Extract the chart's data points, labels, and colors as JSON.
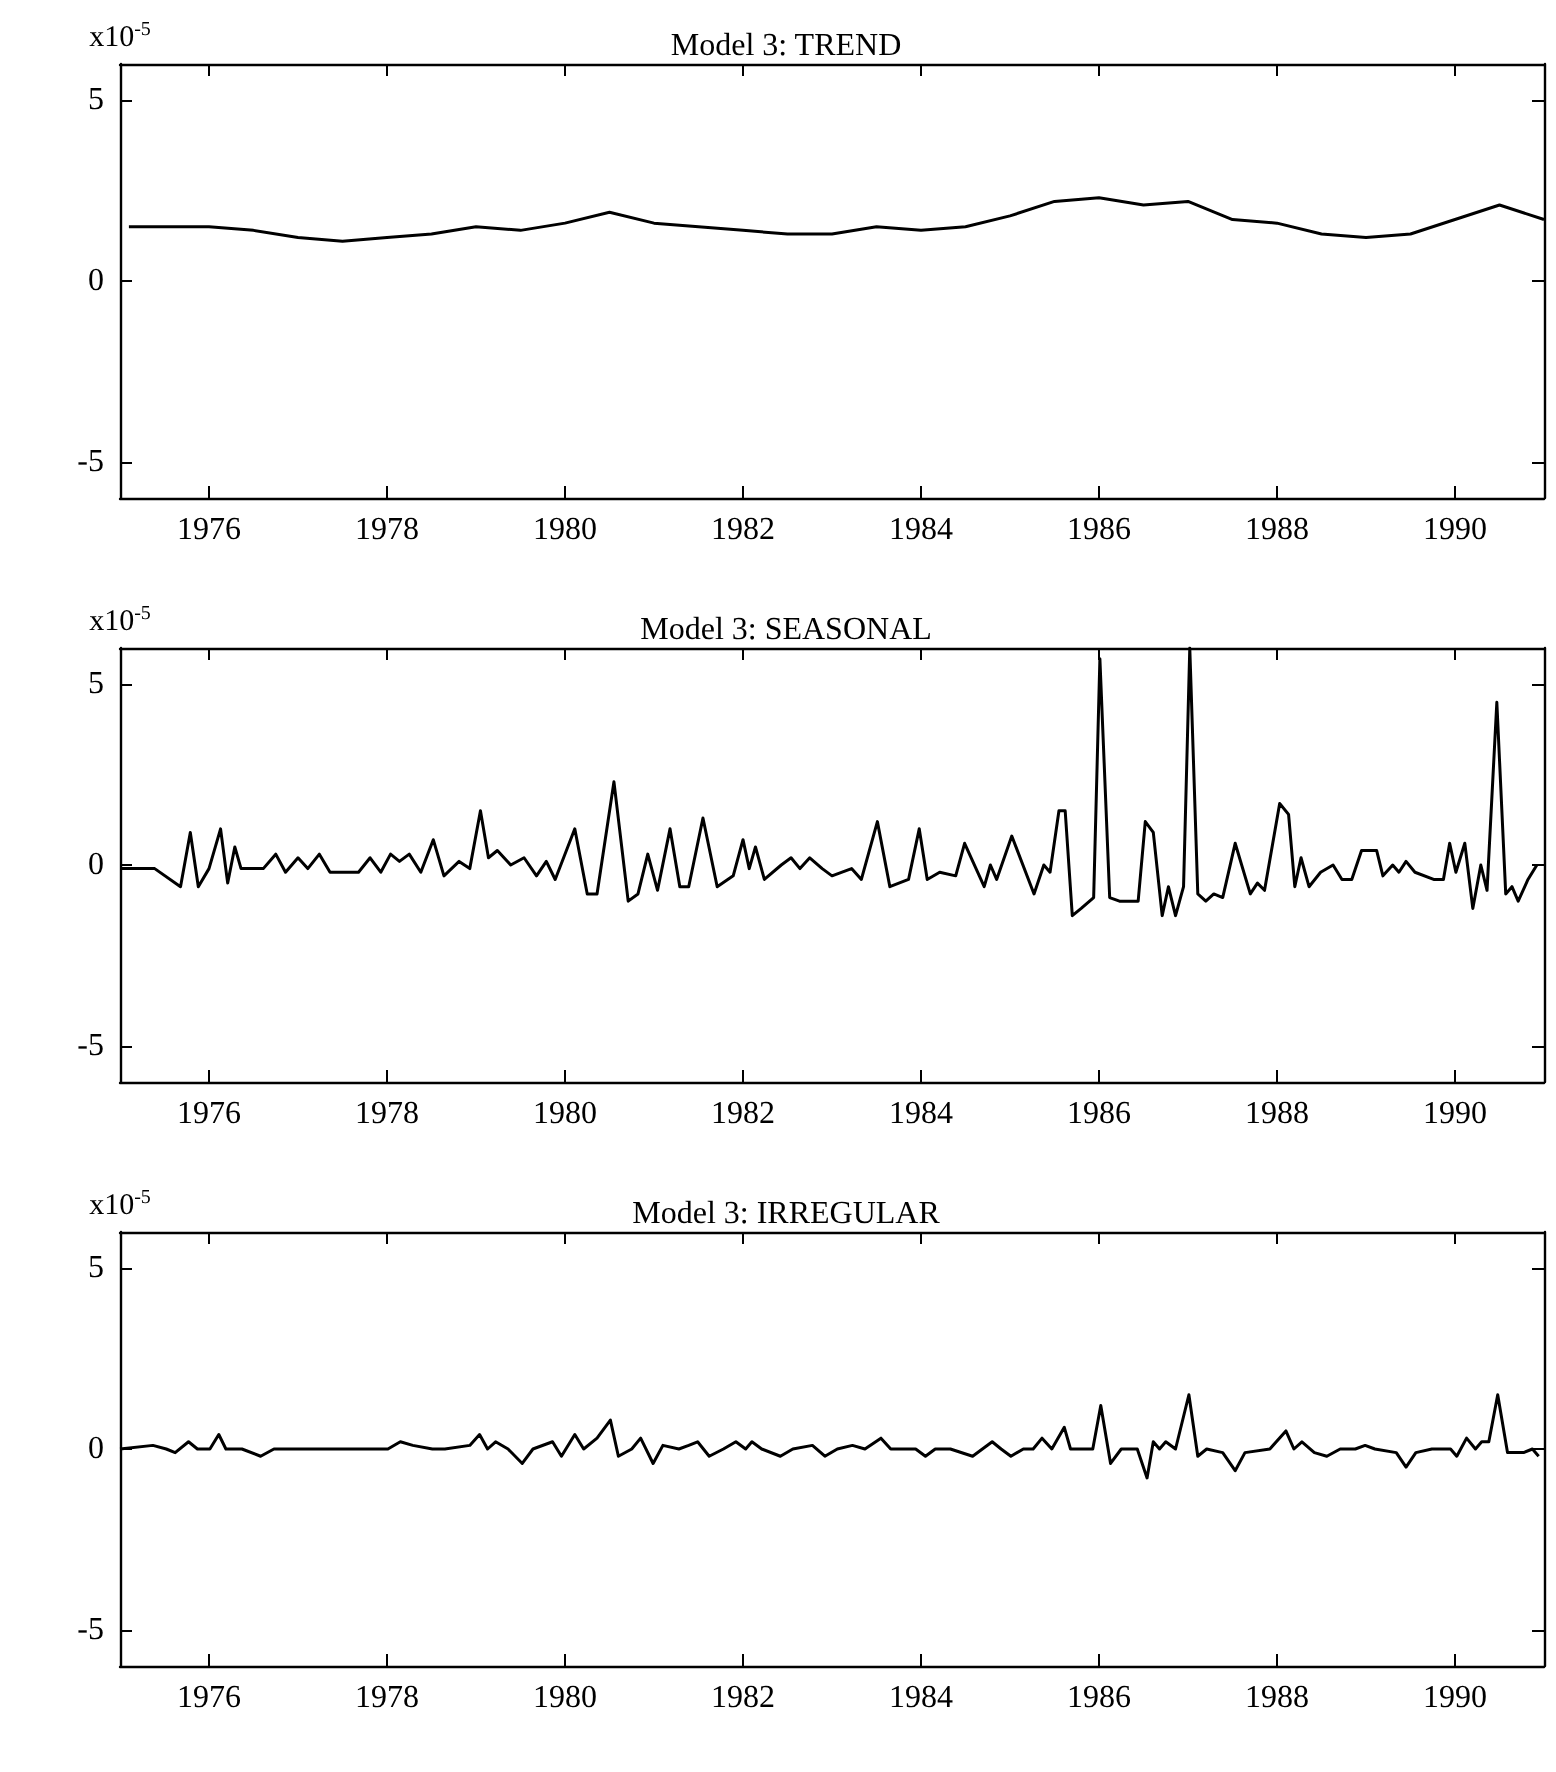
{
  "chart_data": [
    {
      "type": "line",
      "title": "Model 3: TREND",
      "ylabel": "x10$^{-5}$",
      "color": "#000000",
      "xlim": [
        1975,
        1991
      ],
      "xticks": [
        1976,
        1978,
        1980,
        1982,
        1984,
        1986,
        1988,
        1990
      ],
      "ylim": [
        -6,
        6
      ],
      "yticks": [
        -5,
        0,
        5
      ],
      "grid": false,
      "x": [
        1975.1,
        1976,
        1976.5,
        1977,
        1977.5,
        1978,
        1978.5,
        1979,
        1979.5,
        1980,
        1980.5,
        1981,
        1981.5,
        1982,
        1982.5,
        1983,
        1983.5,
        1984,
        1984.5,
        1985,
        1985.5,
        1986,
        1986.5,
        1987,
        1987.5,
        1988,
        1988.5,
        1989,
        1989.5,
        1990,
        1990.5,
        1991
      ],
      "values": [
        1.5,
        1.5,
        1.4,
        1.2,
        1.1,
        1.2,
        1.3,
        1.5,
        1.4,
        1.6,
        1.9,
        1.6,
        1.5,
        1.4,
        1.3,
        1.3,
        1.5,
        1.4,
        1.5,
        1.8,
        2.2,
        2.3,
        2.1,
        2.2,
        1.7,
        1.6,
        1.3,
        1.2,
        1.3,
        1.7,
        2.1,
        1.7
      ]
    },
    {
      "type": "line",
      "title": "Model 3: SEASONAL",
      "ylabel": "x10$^{-5}$",
      "color": "#000000",
      "xlim": [
        1975,
        1991
      ],
      "xticks": [
        1976,
        1978,
        1980,
        1982,
        1984,
        1986,
        1988,
        1990
      ],
      "ylim": [
        -6,
        6
      ],
      "yticks": [
        -5,
        0,
        5
      ],
      "grid": false,
      "x": [
        1975.0,
        1975.39,
        1975.68,
        1975.79,
        1975.88,
        1976.0,
        1976.13,
        1976.21,
        1976.29,
        1976.36,
        1976.61,
        1976.75,
        1976.86,
        1977.0,
        1977.11,
        1977.24,
        1977.36,
        1977.68,
        1977.81,
        1977.93,
        1978.04,
        1978.14,
        1978.25,
        1978.38,
        1978.52,
        1978.64,
        1978.81,
        1978.93,
        1979.05,
        1979.14,
        1979.24,
        1979.39,
        1979.54,
        1979.68,
        1979.79,
        1979.89,
        1980.11,
        1980.25,
        1980.36,
        1980.55,
        1980.71,
        1980.82,
        1980.93,
        1981.04,
        1981.18,
        1981.29,
        1981.39,
        1981.55,
        1981.71,
        1981.89,
        1982.0,
        1982.07,
        1982.14,
        1982.24,
        1982.43,
        1982.54,
        1982.64,
        1982.75,
        1982.89,
        1983.0,
        1983.22,
        1983.33,
        1983.51,
        1983.65,
        1983.86,
        1983.98,
        1984.07,
        1984.21,
        1984.39,
        1984.49,
        1984.71,
        1984.78,
        1984.85,
        1985.02,
        1985.27,
        1985.38,
        1985.45,
        1985.55,
        1985.62,
        1985.7,
        1985.8,
        1985.94,
        1986.01,
        1986.12,
        1986.23,
        1986.44,
        1986.52,
        1986.61,
        1986.71,
        1986.78,
        1986.86,
        1986.95,
        1987.02,
        1987.11,
        1987.2,
        1987.29,
        1987.39,
        1987.53,
        1987.7,
        1987.78,
        1987.86,
        1988.03,
        1988.13,
        1988.2,
        1988.27,
        1988.36,
        1988.49,
        1988.63,
        1988.73,
        1988.84,
        1988.95,
        1989.12,
        1989.19,
        1989.3,
        1989.37,
        1989.45,
        1989.55,
        1989.76,
        1989.87,
        1989.94,
        1990.01,
        1990.11,
        1990.2,
        1990.29,
        1990.36,
        1990.47,
        1990.57,
        1990.64,
        1990.71,
        1990.82,
        1990.92
      ],
      "values": [
        -0.1,
        -0.1,
        -0.6,
        0.9,
        -0.6,
        -0.1,
        1.0,
        -0.5,
        0.5,
        -0.1,
        -0.1,
        0.3,
        -0.2,
        0.2,
        -0.1,
        0.3,
        -0.2,
        -0.2,
        0.2,
        -0.2,
        0.3,
        0.1,
        0.3,
        -0.2,
        0.7,
        -0.3,
        0.1,
        -0.1,
        1.5,
        0.2,
        0.4,
        0.0,
        0.2,
        -0.3,
        0.1,
        -0.4,
        1.0,
        -0.8,
        -0.8,
        2.3,
        -1.0,
        -0.8,
        0.3,
        -0.7,
        1.0,
        -0.6,
        -0.6,
        1.3,
        -0.6,
        -0.3,
        0.7,
        -0.1,
        0.5,
        -0.4,
        0.0,
        0.2,
        -0.1,
        0.2,
        -0.1,
        -0.3,
        -0.1,
        -0.4,
        1.2,
        -0.6,
        -0.4,
        1.0,
        -0.4,
        -0.2,
        -0.3,
        0.6,
        -0.6,
        0.0,
        -0.4,
        0.8,
        -0.8,
        0.0,
        -0.2,
        1.5,
        1.5,
        -1.4,
        -1.2,
        -0.9,
        5.7,
        -0.9,
        -1.0,
        -1.0,
        1.2,
        0.9,
        -1.4,
        -0.6,
        -1.4,
        -0.6,
        6.0,
        -0.8,
        -1.0,
        -0.8,
        -0.9,
        0.6,
        -0.8,
        -0.5,
        -0.7,
        1.7,
        1.4,
        -0.6,
        0.2,
        -0.6,
        -0.2,
        0.0,
        -0.4,
        -0.4,
        0.4,
        0.4,
        -0.3,
        0.0,
        -0.2,
        0.1,
        -0.2,
        -0.4,
        -0.4,
        0.6,
        -0.2,
        0.6,
        -1.2,
        0.0,
        -0.7,
        4.5,
        -0.8,
        -0.6,
        -1.0,
        -0.4,
        0.0
      ]
    },
    {
      "type": "line",
      "title": "Model 3: IRREGULAR",
      "ylabel": "x10$^{-5}$",
      "color": "#000000",
      "xlim": [
        1975,
        1991
      ],
      "xticks": [
        1976,
        1978,
        1980,
        1982,
        1984,
        1986,
        1988,
        1990
      ],
      "ylim": [
        -6,
        6
      ],
      "yticks": [
        -5,
        0,
        5
      ],
      "grid": false,
      "x": [
        1975.0,
        1975.37,
        1975.52,
        1975.62,
        1975.77,
        1975.87,
        1976.01,
        1976.11,
        1976.19,
        1976.37,
        1976.58,
        1976.73,
        1977.01,
        1977.22,
        1977.44,
        1977.65,
        1977.79,
        1978.01,
        1978.15,
        1978.29,
        1978.51,
        1978.65,
        1978.93,
        1979.04,
        1979.13,
        1979.22,
        1979.36,
        1979.52,
        1979.64,
        1979.86,
        1979.96,
        1980.11,
        1980.21,
        1980.36,
        1980.51,
        1980.6,
        1980.75,
        1980.85,
        1980.99,
        1981.1,
        1981.28,
        1981.39,
        1981.49,
        1981.62,
        1981.78,
        1981.92,
        1982.03,
        1982.1,
        1982.21,
        1982.42,
        1982.56,
        1982.78,
        1982.92,
        1983.06,
        1983.23,
        1983.37,
        1983.55,
        1983.66,
        1983.94,
        1984.05,
        1984.16,
        1984.33,
        1984.58,
        1984.8,
        1984.9,
        1985.01,
        1985.15,
        1985.26,
        1985.36,
        1985.47,
        1985.61,
        1985.68,
        1985.93,
        1986.02,
        1986.13,
        1986.25,
        1986.43,
        1986.54,
        1986.61,
        1986.68,
        1986.75,
        1986.86,
        1987.01,
        1987.11,
        1987.21,
        1987.39,
        1987.53,
        1987.64,
        1987.92,
        1988.1,
        1988.19,
        1988.28,
        1988.42,
        1988.56,
        1988.71,
        1988.88,
        1988.99,
        1989.1,
        1989.34,
        1989.45,
        1989.56,
        1989.74,
        1989.84,
        1989.95,
        1990.02,
        1990.13,
        1990.23,
        1990.3,
        1990.38,
        1990.48,
        1990.59,
        1990.77,
        1990.87,
        1990.94
      ],
      "values": [
        0.0,
        0.1,
        0.0,
        -0.1,
        0.2,
        0.0,
        0.0,
        0.4,
        0.0,
        0.0,
        -0.2,
        0.0,
        0.0,
        0.0,
        0.0,
        0.0,
        0.0,
        0.0,
        0.2,
        0.1,
        0.0,
        0.0,
        0.1,
        0.4,
        0.0,
        0.2,
        0.0,
        -0.4,
        0.0,
        0.2,
        -0.2,
        0.4,
        0.0,
        0.3,
        0.8,
        -0.2,
        0.0,
        0.3,
        -0.4,
        0.1,
        0.0,
        0.1,
        0.2,
        -0.2,
        0.0,
        0.2,
        0.0,
        0.2,
        0.0,
        -0.2,
        0.0,
        0.1,
        -0.2,
        0.0,
        0.1,
        0.0,
        0.3,
        0.0,
        0.0,
        -0.2,
        0.0,
        0.0,
        -0.2,
        0.2,
        0.0,
        -0.2,
        0.0,
        0.0,
        0.3,
        0.0,
        0.6,
        0.0,
        0.0,
        1.2,
        -0.4,
        0.0,
        0.0,
        -0.8,
        0.2,
        0.0,
        0.2,
        0.0,
        1.5,
        -0.2,
        0.0,
        -0.1,
        -0.6,
        -0.1,
        0.0,
        0.5,
        0.0,
        0.2,
        -0.1,
        -0.2,
        0.0,
        0.0,
        0.1,
        0.0,
        -0.1,
        -0.5,
        -0.1,
        0.0,
        0.0,
        0.0,
        -0.2,
        0.3,
        0.0,
        0.2,
        0.2,
        1.5,
        -0.1,
        -0.1,
        0.0,
        -0.2
      ]
    }
  ]
}
